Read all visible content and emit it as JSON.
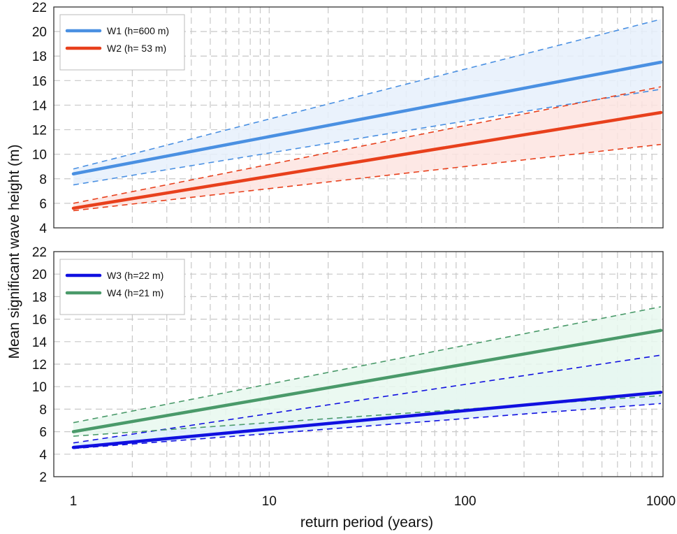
{
  "chart_data": [
    {
      "type": "line",
      "panel": "top",
      "xscale": "log",
      "xlim": [
        1,
        1000
      ],
      "ylim": [
        4,
        22
      ],
      "yticks": [
        4,
        6,
        8,
        10,
        12,
        14,
        16,
        18,
        20,
        22
      ],
      "grid": true,
      "legend_position": "top-left",
      "series": [
        {
          "name": "W1 (h=600 m)",
          "color": "#4a90e2",
          "fill": "#e6f0fc",
          "x": [
            1,
            1000
          ],
          "mean": [
            8.4,
            17.5
          ],
          "upper": [
            8.8,
            21
          ],
          "lower": [
            7.5,
            15.3
          ]
        },
        {
          "name": "W2 (h= 53 m)",
          "color": "#e8401c",
          "fill": "#fde4e1",
          "x": [
            1,
            1000
          ],
          "mean": [
            5.6,
            13.4
          ],
          "upper": [
            6.0,
            15.5
          ],
          "lower": [
            5.4,
            10.8
          ]
        }
      ]
    },
    {
      "type": "line",
      "panel": "bottom",
      "xscale": "log",
      "xlim": [
        1,
        1000
      ],
      "ylim": [
        2,
        22
      ],
      "yticks": [
        2,
        4,
        6,
        8,
        10,
        12,
        14,
        16,
        18,
        20,
        22
      ],
      "grid": true,
      "legend_position": "top-left",
      "series": [
        {
          "name": "W3 (h=22 m)",
          "color": "#1010e0",
          "fill": "#dceefa",
          "x": [
            1,
            1000
          ],
          "mean": [
            4.6,
            9.5
          ],
          "upper": [
            5.0,
            12.8
          ],
          "lower": [
            4.5,
            8.5
          ]
        },
        {
          "name": "W4 (h=21 m)",
          "color": "#4a9a6a",
          "fill": "#e8f8ee",
          "x": [
            1,
            1000
          ],
          "mean": [
            6.0,
            15.0
          ],
          "upper": [
            6.8,
            17.1
          ],
          "lower": [
            5.6,
            9.2
          ]
        }
      ]
    }
  ],
  "xticks": [
    1,
    10,
    100,
    1000
  ],
  "xtick_labels": [
    "1",
    "10",
    "100",
    "1000"
  ],
  "xlabel": "return period (years)",
  "ylabel": "Mean significant wave height (m)"
}
